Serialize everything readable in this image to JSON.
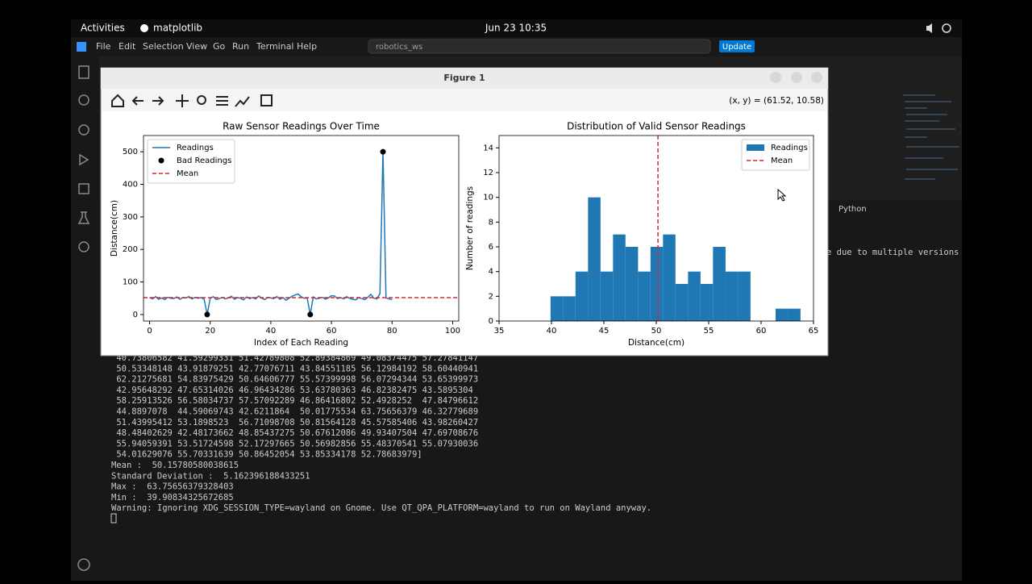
{
  "topbar": {
    "activities": "Activities",
    "app": "matplotlib",
    "clock": "Jun 23  10:35"
  },
  "vscode": {
    "menu": [
      "File",
      "Edit",
      "Selection",
      "View",
      "Go",
      "Run",
      "Terminal",
      "Help"
    ],
    "search": "robotics_ws",
    "update": "Update",
    "terminal_profile": "Python",
    "terminal_fragment": "e due to multiple versions"
  },
  "figure": {
    "title": "Figure 1",
    "coords": "(x, y) = (61.52, 10.58)"
  },
  "terminal": {
    "lines": [
      " 40.73806582 41.59299331 51.42789808 52.89384869 49.08374475 57.27841147",
      " 50.53348148 43.91879251 42.77076711 43.84551185 56.12984192 58.60440941",
      " 62.21275681 54.83975429 50.64606777 55.57399998 56.07294344 53.65399973",
      " 42.95648292 47.65314026 46.96434286 53.63780363 46.82382475 43.5895304",
      " 58.25913526 56.58034737 57.57092289 46.86416802 52.4928252  47.84796612",
      " 44.8897078  44.59069743 42.6211864  50.01775534 63.75656379 46.32779689",
      " 51.43995412 53.1898523  56.71098708 50.81564128 45.57585406 43.98260427",
      " 48.48402629 42.48173662 48.85437275 50.67612086 49.93407504 47.69708676",
      " 55.94059391 53.51724598 52.17297665 50.56982856 55.48370541 55.07930036",
      " 54.01629076 55.70331639 50.86452054 53.85334178 52.78683979]",
      "Mean :  50.15780580038615",
      "Standard Deviation :  5.162396188433251",
      "Max :  63.75656379328403",
      "Min :  39.90834325672685",
      "Warning: Ignoring XDG_SESSION_TYPE=wayland on Gnome. Use QT_QPA_PLATFORM=wayland to run on Wayland anyway."
    ]
  },
  "chart_data": [
    {
      "type": "line",
      "title": "Raw Sensor Readings Over Time",
      "xlabel": "Index of Each Reading",
      "ylabel": "Distance(cm)",
      "xlim": [
        -2,
        102
      ],
      "xticks": [
        0,
        20,
        40,
        60,
        80,
        100
      ],
      "ylim": [
        -20,
        550
      ],
      "yticks": [
        0,
        100,
        200,
        300,
        400,
        500
      ],
      "legend": "upper left",
      "series": [
        {
          "name": "Readings",
          "kind": "line",
          "color": "#1f77b4",
          "x": [
            0,
            1,
            2,
            3,
            4,
            5,
            6,
            7,
            8,
            9,
            10,
            11,
            12,
            13,
            14,
            15,
            16,
            17,
            18,
            19,
            20,
            21,
            22,
            23,
            24,
            25,
            26,
            27,
            28,
            29,
            30,
            31,
            32,
            33,
            34,
            35,
            36,
            37,
            38,
            39,
            40,
            41,
            42,
            43,
            44,
            45,
            46,
            47,
            48,
            49,
            50,
            51,
            52,
            53,
            54,
            55,
            56,
            57,
            58,
            59,
            60,
            61,
            62,
            63,
            64,
            65,
            66,
            67,
            68,
            69,
            70,
            71,
            72,
            73,
            74,
            75,
            76,
            77,
            78,
            79,
            80
          ],
          "values": [
            52,
            48,
            55,
            47,
            51,
            46,
            53,
            50,
            49,
            54,
            47,
            52,
            51,
            55,
            48,
            53,
            50,
            52,
            47,
            0,
            50,
            55,
            46,
            49,
            53,
            48,
            51,
            56,
            47,
            52,
            50,
            45,
            54,
            49,
            52,
            48,
            57,
            50,
            46,
            53,
            51,
            49,
            55,
            47,
            52,
            44,
            50,
            56,
            60,
            63,
            55,
            50,
            51,
            0,
            54,
            48,
            50,
            53,
            47,
            51,
            58,
            57,
            49,
            52,
            48,
            55,
            50,
            47,
            45,
            52,
            49,
            46,
            53,
            62,
            50,
            48,
            64,
            500,
            51,
            48,
            46
          ]
        },
        {
          "name": "Bad Readings",
          "kind": "scatter",
          "color": "#000000",
          "x": [
            19,
            53,
            77
          ],
          "values": [
            0,
            0,
            500
          ]
        }
      ],
      "mean": {
        "name": "Mean",
        "value": 52,
        "color": "#d62728"
      }
    },
    {
      "type": "histogram",
      "title": "Distribution of Valid Sensor Readings",
      "xlabel": "Distance(cm)",
      "ylabel": "Number of readings",
      "xlim": [
        35,
        65
      ],
      "xticks": [
        35,
        40,
        45,
        50,
        55,
        60,
        65
      ],
      "ylim": [
        0,
        15
      ],
      "yticks": [
        0,
        2,
        4,
        6,
        8,
        10,
        12,
        14
      ],
      "legend": "upper right",
      "name": "Readings",
      "color": "#1f77b4",
      "bins": [
        39.91,
        41.1,
        42.29,
        43.49,
        44.68,
        45.87,
        47.06,
        48.26,
        49.45,
        50.64,
        51.83,
        53.03,
        54.22,
        55.41,
        56.61,
        57.8,
        58.99,
        60.18,
        61.38,
        62.57,
        63.76
      ],
      "counts": [
        2,
        2,
        4,
        10,
        4,
        7,
        6,
        4,
        6,
        7,
        3,
        4,
        3,
        6,
        4,
        4,
        0,
        0,
        1,
        1
      ],
      "mean": {
        "name": "Mean",
        "value": 50.16,
        "color": "#d62728"
      }
    }
  ]
}
